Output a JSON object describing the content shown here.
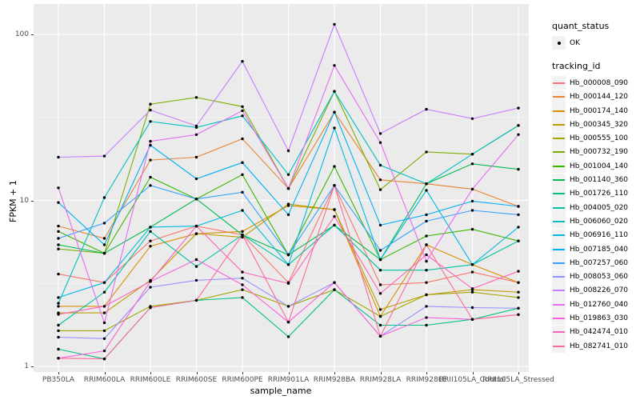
{
  "colors": {
    "panel_bg": "#EBEBEB",
    "grid_major": "#FFFFFF",
    "grid_minor": "#F5F5F5",
    "axis_text": "#4D4D4D",
    "point": "#000000",
    "legend_key_bg": "#F2F2F2"
  },
  "axes": {
    "x_title": "sample_name",
    "y_title": "FPKM + 1",
    "y_ticks": [
      {
        "label": "100",
        "value": 100
      },
      {
        "label": "10",
        "value": 10
      },
      {
        "label": "1",
        "value": 1
      }
    ]
  },
  "legend": {
    "quant_title": "quant_status",
    "quant_items": [
      {
        "label": "OK"
      }
    ],
    "tracking_title": "tracking_id"
  },
  "chart_data": {
    "type": "line",
    "x_scale": "categorical",
    "y_scale": "log10",
    "ylim": [
      1,
      140
    ],
    "xlabel": "sample_name",
    "ylabel": "FPKM + 1",
    "legend_position": "right",
    "grid": true,
    "point_marker": "filled-circle-black",
    "categories": [
      "PB350LA",
      "RRIM600LA",
      "RRIM600LE",
      "RRIM600SE",
      "RRIM600PE",
      "RRIM901LA",
      "RRIM928BA",
      "RRIM928LA",
      "RRIM928LE",
      "RRII105LA_Control",
      "RRII105LA_Stressed"
    ],
    "series": [
      {
        "name": "Hb_000008_090",
        "color": "#F8766D",
        "values": [
          3.6,
          3.2,
          5.7,
          7.0,
          6.2,
          3.2,
          12.3,
          3.1,
          3.2,
          3.7,
          3.2
        ]
      },
      {
        "name": "Hb_000144_120",
        "color": "#EA8331",
        "values": [
          7.0,
          5.9,
          17.5,
          18.2,
          23.5,
          11.8,
          34.0,
          13.3,
          12.6,
          11.7,
          9.2
        ]
      },
      {
        "name": "Hb_000174_140",
        "color": "#D89000",
        "values": [
          2.3,
          2.3,
          5.3,
          6.3,
          6.5,
          9.3,
          8.8,
          2.0,
          5.4,
          4.1,
          3.2
        ]
      },
      {
        "name": "Hb_000345_320",
        "color": "#C09B00",
        "values": [
          2.1,
          2.1,
          3.3,
          6.3,
          6.0,
          9.5,
          8.8,
          2.2,
          2.7,
          2.9,
          2.8
        ]
      },
      {
        "name": "Hb_000555_100",
        "color": "#A3A500",
        "values": [
          1.64,
          1.64,
          2.3,
          2.5,
          2.9,
          2.3,
          2.9,
          2.0,
          2.7,
          2.8,
          2.6
        ]
      },
      {
        "name": "Hb_000732_190",
        "color": "#7CAE00",
        "values": [
          5.1,
          4.8,
          38.0,
          41.7,
          36.7,
          11.8,
          45.4,
          11.6,
          19.6,
          19.0,
          28.3
        ]
      },
      {
        "name": "Hb_001004_140",
        "color": "#39B600",
        "values": [
          6.5,
          4.8,
          13.8,
          10.2,
          14.3,
          4.7,
          16.0,
          4.4,
          6.1,
          6.7,
          5.7
        ]
      },
      {
        "name": "Hb_001140_360",
        "color": "#00BB4E",
        "values": [
          5.4,
          4.8,
          6.9,
          10.2,
          6.2,
          4.7,
          7.1,
          4.4,
          12.6,
          16.6,
          15.4
        ]
      },
      {
        "name": "Hb_001726_110",
        "color": "#00C087",
        "values": [
          1.27,
          1.11,
          2.26,
          2.5,
          2.6,
          1.51,
          2.9,
          1.77,
          1.77,
          1.92,
          2.24
        ]
      },
      {
        "name": "Hb_004005_020",
        "color": "#00C1A3",
        "values": [
          1.77,
          2.8,
          6.5,
          4.0,
          6.2,
          4.1,
          7.1,
          3.8,
          3.8,
          4.1,
          5.7
        ]
      },
      {
        "name": "Hb_006060_020",
        "color": "#00BFC4",
        "values": [
          2.4,
          10.4,
          29.9,
          27.5,
          32.3,
          14.3,
          45.4,
          16.3,
          12.6,
          19.0,
          28.3
        ]
      },
      {
        "name": "Hb_006916_110",
        "color": "#00BAE0",
        "values": [
          2.6,
          3.2,
          6.9,
          7.0,
          8.7,
          4.1,
          27.3,
          4.4,
          11.5,
          4.1,
          6.9
        ]
      },
      {
        "name": "Hb_007185_040",
        "color": "#00B0F6",
        "values": [
          9.7,
          5.4,
          21.5,
          13.5,
          16.9,
          8.2,
          34.0,
          7.1,
          8.2,
          9.9,
          9.2
        ]
      },
      {
        "name": "Hb_007257_060",
        "color": "#35A2FF",
        "values": [
          5.9,
          7.3,
          12.3,
          10.2,
          11.2,
          4.7,
          12.3,
          5.0,
          7.5,
          8.7,
          8.2
        ]
      },
      {
        "name": "Hb_008053_060",
        "color": "#9590FF",
        "values": [
          1.5,
          1.47,
          3.0,
          3.3,
          3.4,
          2.3,
          3.2,
          1.52,
          2.3,
          2.26,
          2.24
        ]
      },
      {
        "name": "Hb_008226_070",
        "color": "#C77CFF",
        "values": [
          18.2,
          18.5,
          35.0,
          28.1,
          68.8,
          19.9,
          115.0,
          25.3,
          35.4,
          31.1,
          36.0
        ]
      },
      {
        "name": "Hb_012760_040",
        "color": "#E76BF3",
        "values": [
          11.9,
          1.83,
          22.7,
          24.9,
          34.7,
          11.8,
          65.0,
          22.3,
          4.3,
          11.7,
          24.9
        ]
      },
      {
        "name": "Hb_019863_030",
        "color": "#FA62DB",
        "values": [
          1.12,
          1.24,
          3.25,
          4.4,
          3.1,
          1.85,
          3.2,
          1.52,
          1.97,
          1.92,
          2.05
        ]
      },
      {
        "name": "Hb_042474_010",
        "color": "#FF62BC",
        "values": [
          2.06,
          2.3,
          3.25,
          7.0,
          3.7,
          3.16,
          8.0,
          2.75,
          4.7,
          2.94,
          3.74
        ]
      },
      {
        "name": "Hb_082741_010",
        "color": "#FF6A98",
        "values": [
          1.12,
          1.11,
          2.26,
          2.5,
          6.2,
          1.85,
          12.3,
          1.52,
          5.4,
          1.92,
          2.05
        ]
      }
    ]
  }
}
